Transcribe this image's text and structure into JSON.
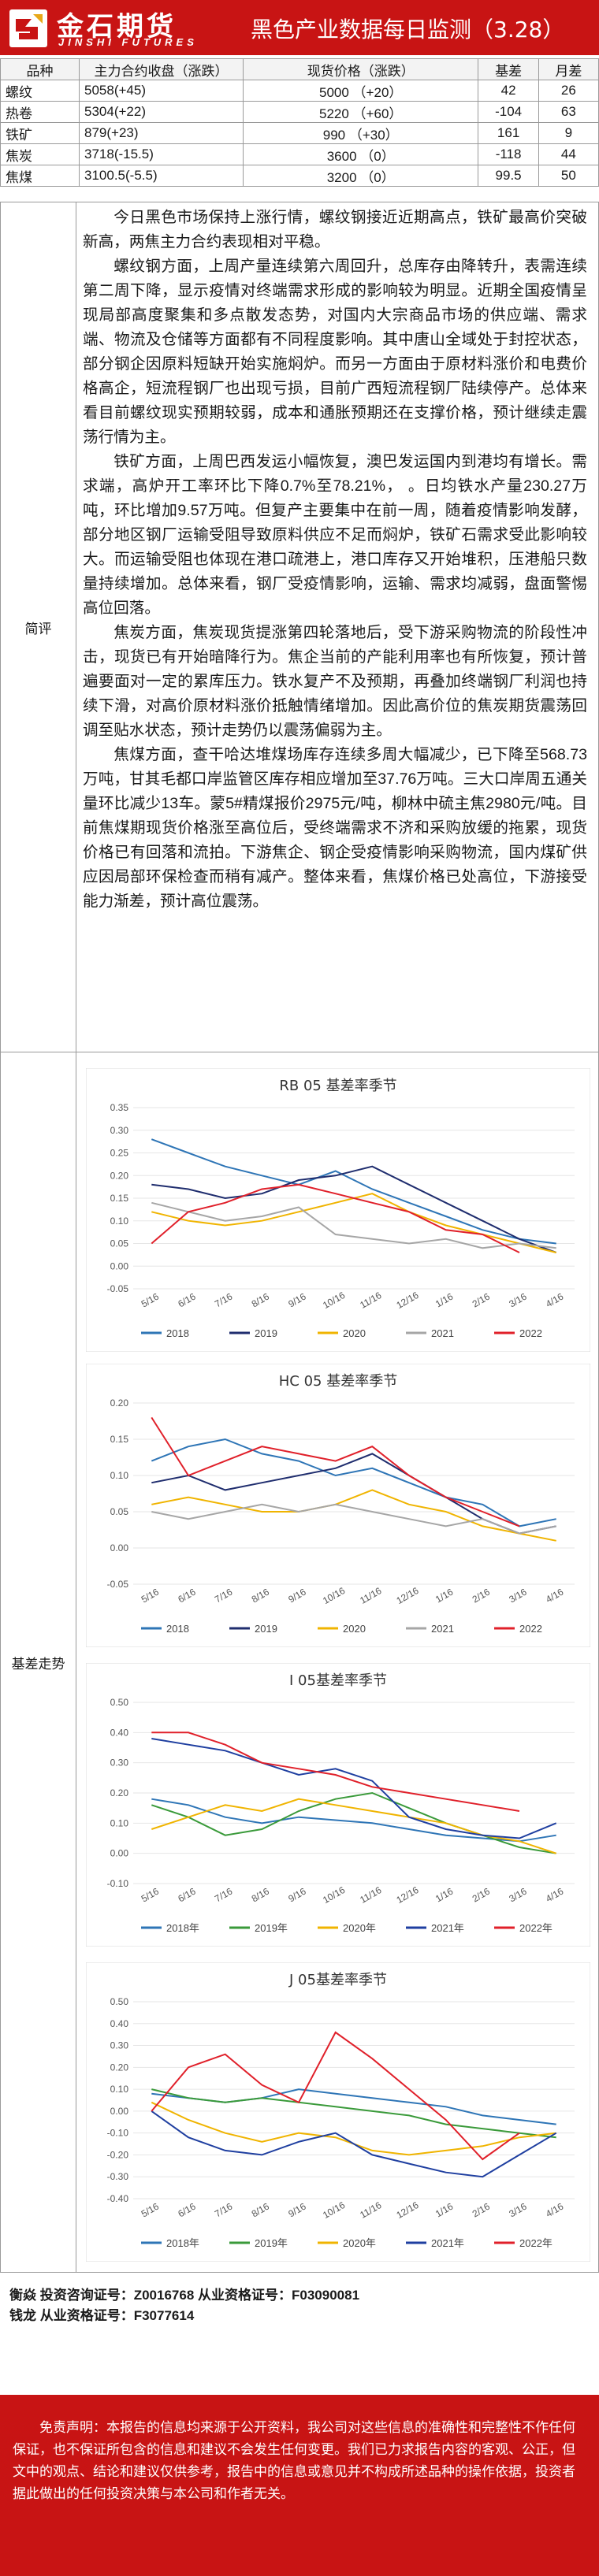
{
  "header": {
    "logo_cn": "金石期货",
    "logo_en": "JINSHI FUTURES",
    "title": "黑色产业数据每日监测（3.28）"
  },
  "table": {
    "headers": [
      "品种",
      "主力合约收盘（涨跌）",
      "现货价格（涨跌）",
      "基差",
      "月差"
    ],
    "rows": [
      [
        "螺纹",
        "5058(+45)",
        "5000 （+20）",
        "42",
        "26"
      ],
      [
        "热卷",
        "5304(+22)",
        "5220 （+60）",
        "-104",
        "63"
      ],
      [
        "铁矿",
        "879(+23)",
        "990 （+30）",
        "161",
        "9"
      ],
      [
        "焦炭",
        "3718(-15.5)",
        "3600 （0）",
        "-118",
        "44"
      ],
      [
        "焦煤",
        "3100.5(-5.5)",
        "3200 （0）",
        "99.5",
        "50"
      ]
    ]
  },
  "brief": {
    "label": "简评",
    "paragraphs": [
      "今日黑色市场保持上涨行情，螺纹钢接近近期高点，铁矿最高价突破新高，两焦主力合约表现相对平稳。",
      "螺纹钢方面，上周产量连续第六周回升，总库存由降转升，表需连续第二周下降，显示疫情对终端需求形成的影响较为明显。近期全国疫情呈现局部高度聚集和多点散发态势，对国内大宗商品市场的供应端、需求端、物流及仓储等方面都有不同程度影响。其中唐山全域处于封控状态，部分钢企因原料短缺开始实施焖炉。而另一方面由于原材料涨价和电费价格高企，短流程钢厂也出现亏损，目前广西短流程钢厂陆续停产。总体来看目前螺纹现实预期较弱，成本和通胀预期还在支撑价格，预计继续走震荡行情为主。",
      "铁矿方面，上周巴西发运小幅恢复，澳巴发运国内到港均有增长。需求端，高炉开工率环比下降0.7%至78.21%， 。日均铁水产量230.27万吨，环比增加9.57万吨。但复产主要集中在前一周，随着疫情影响发酵，部分地区钢厂运输受阻导致原料供应不足而焖炉，铁矿石需求受此影响较大。而运输受阻也体现在港口疏港上，港口库存又开始堆积，压港船只数量持续增加。总体来看，钢厂受疫情影响，运输、需求均减弱，盘面警惕高位回落。",
      "焦炭方面，焦炭现货提涨第四轮落地后，受下游采购物流的阶段性冲击，现货已有开始暗降行为。焦企当前的产能利用率也有所恢复，预计普遍要面对一定的累库压力。铁水复产不及预期，再叠加终端钢厂利润也持续下滑，对高价原材料涨价抵触情绪增加。因此高价位的焦炭期货震荡回调至贴水状态，预计走势仍以震荡偏弱为主。",
      "焦煤方面，查干哈达堆煤场库存连续多周大幅减少，已下降至568.73万吨，甘其毛都口岸监管区库存相应增加至37.76万吨。三大口岸周五通关量环比减少13车。蒙5#精煤报价2975元/吨，柳林中硫主焦2980元/吨。目前焦煤期现货价格涨至高位后，受终端需求不济和采购放缓的拖累，现货价格已有回落和流拍。下游焦企、钢企受疫情影响采购物流，国内煤矿供应因局部环保检查而稍有减产。整体来看，焦煤价格已处高位，下游接受能力渐差，预计高位震荡。"
    ]
  },
  "charts_label": "基差走势",
  "chart_data": [
    {
      "type": "line",
      "title": "RB 05 基差率季节",
      "categories": [
        "5/16",
        "6/16",
        "7/16",
        "8/16",
        "9/16",
        "10/16",
        "11/16",
        "12/16",
        "1/16",
        "2/16",
        "3/16",
        "4/16"
      ],
      "ylim": [
        -0.05,
        0.35
      ],
      "yticks": [
        "0.35",
        "0.30",
        "0.25",
        "0.20",
        "0.15",
        "0.10",
        "0.05",
        "0.00",
        "-0.05"
      ],
      "series": [
        {
          "name": "2018",
          "color": "#2e75b6",
          "values": [
            0.28,
            0.25,
            0.22,
            0.2,
            0.18,
            0.21,
            0.17,
            0.14,
            0.11,
            0.08,
            0.06,
            0.05
          ]
        },
        {
          "name": "2019",
          "color": "#1f2d6e",
          "values": [
            0.18,
            0.17,
            0.15,
            0.16,
            0.19,
            0.2,
            0.22,
            0.18,
            0.14,
            0.1,
            0.06,
            0.03
          ]
        },
        {
          "name": "2020",
          "color": "#f0b400",
          "values": [
            0.12,
            0.1,
            0.09,
            0.1,
            0.12,
            0.14,
            0.16,
            0.12,
            0.09,
            0.07,
            0.05,
            0.03
          ]
        },
        {
          "name": "2021",
          "color": "#a6a6a6",
          "values": [
            0.14,
            0.12,
            0.1,
            0.11,
            0.13,
            0.07,
            0.06,
            0.05,
            0.06,
            0.04,
            0.05,
            0.04
          ]
        },
        {
          "name": "2022",
          "color": "#e0202a",
          "values": [
            0.05,
            0.12,
            0.14,
            0.17,
            0.18,
            0.16,
            0.14,
            0.12,
            0.08,
            0.07,
            0.03,
            null
          ]
        }
      ]
    },
    {
      "type": "line",
      "title": "HC 05 基差率季节",
      "categories": [
        "5/16",
        "6/16",
        "7/16",
        "8/16",
        "9/16",
        "10/16",
        "11/16",
        "12/16",
        "1/16",
        "2/16",
        "3/16",
        "4/16"
      ],
      "ylim": [
        -0.05,
        0.2
      ],
      "yticks": [
        "0.20",
        "0.15",
        "0.10",
        "0.05",
        "0.00",
        "-0.05"
      ],
      "series": [
        {
          "name": "2018",
          "color": "#2e75b6",
          "values": [
            0.12,
            0.14,
            0.15,
            0.13,
            0.12,
            0.1,
            0.11,
            0.09,
            0.07,
            0.06,
            0.03,
            0.04
          ]
        },
        {
          "name": "2019",
          "color": "#1f2d6e",
          "values": [
            0.09,
            0.1,
            0.08,
            0.09,
            0.1,
            0.11,
            0.13,
            0.1,
            0.07,
            0.04,
            0.02,
            0.03
          ]
        },
        {
          "name": "2020",
          "color": "#f0b400",
          "values": [
            0.06,
            0.07,
            0.06,
            0.05,
            0.05,
            0.06,
            0.08,
            0.06,
            0.05,
            0.03,
            0.02,
            0.01
          ]
        },
        {
          "name": "2021",
          "color": "#a6a6a6",
          "values": [
            0.05,
            0.04,
            0.05,
            0.06,
            0.05,
            0.06,
            0.05,
            0.04,
            0.03,
            0.04,
            0.02,
            0.03
          ]
        },
        {
          "name": "2022",
          "color": "#e0202a",
          "values": [
            0.18,
            0.1,
            0.12,
            0.14,
            0.13,
            0.12,
            0.14,
            0.1,
            0.07,
            0.05,
            0.03,
            null
          ]
        }
      ]
    },
    {
      "type": "line",
      "title": "I 05基差率季节",
      "categories": [
        "5/16",
        "6/16",
        "7/16",
        "8/16",
        "9/16",
        "10/16",
        "11/16",
        "12/16",
        "1/16",
        "2/16",
        "3/16",
        "4/16"
      ],
      "ylim": [
        -0.1,
        0.5
      ],
      "yticks": [
        "0.50",
        "0.40",
        "0.30",
        "0.20",
        "0.10",
        "0.00",
        "-0.10"
      ],
      "series": [
        {
          "name": "2018年",
          "color": "#2e75b6",
          "values": [
            0.18,
            0.16,
            0.12,
            0.1,
            0.12,
            0.11,
            0.1,
            0.08,
            0.06,
            0.05,
            0.04,
            0.06
          ]
        },
        {
          "name": "2019年",
          "color": "#3a9a3a",
          "values": [
            0.16,
            0.12,
            0.06,
            0.08,
            0.14,
            0.18,
            0.2,
            0.15,
            0.1,
            0.06,
            0.02,
            0.0
          ]
        },
        {
          "name": "2020年",
          "color": "#f0b400",
          "values": [
            0.08,
            0.12,
            0.16,
            0.14,
            0.18,
            0.16,
            0.14,
            0.12,
            0.1,
            0.06,
            0.04,
            0.0
          ]
        },
        {
          "name": "2021年",
          "color": "#1f3fa0",
          "values": [
            0.38,
            0.36,
            0.34,
            0.3,
            0.26,
            0.28,
            0.24,
            0.12,
            0.08,
            0.06,
            0.05,
            0.1
          ]
        },
        {
          "name": "2022年",
          "color": "#e0202a",
          "values": [
            0.4,
            0.4,
            0.36,
            0.3,
            0.28,
            0.26,
            0.22,
            0.2,
            0.18,
            0.16,
            0.14,
            null
          ]
        }
      ]
    },
    {
      "type": "line",
      "title": "J 05基差率季节",
      "categories": [
        "5/16",
        "6/16",
        "7/16",
        "8/16",
        "9/16",
        "10/16",
        "11/16",
        "12/16",
        "1/16",
        "2/16",
        "3/16",
        "4/16"
      ],
      "ylim": [
        -0.4,
        0.5
      ],
      "yticks": [
        "0.50",
        "0.40",
        "0.30",
        "0.20",
        "0.10",
        "0.00",
        "-0.10",
        "-0.20",
        "-0.30",
        "-0.40"
      ],
      "series": [
        {
          "name": "2018年",
          "color": "#2e75b6",
          "values": [
            0.08,
            0.06,
            0.04,
            0.06,
            0.1,
            0.08,
            0.06,
            0.04,
            0.02,
            -0.02,
            -0.04,
            -0.06
          ]
        },
        {
          "name": "2019年",
          "color": "#3a9a3a",
          "values": [
            0.1,
            0.06,
            0.04,
            0.06,
            0.04,
            0.02,
            0.0,
            -0.02,
            -0.06,
            -0.08,
            -0.1,
            -0.12
          ]
        },
        {
          "name": "2020年",
          "color": "#f0b400",
          "values": [
            0.04,
            -0.04,
            -0.1,
            -0.14,
            -0.1,
            -0.12,
            -0.18,
            -0.2,
            -0.18,
            -0.16,
            -0.12,
            -0.1
          ]
        },
        {
          "name": "2021年",
          "color": "#1f3fa0",
          "values": [
            0.0,
            -0.12,
            -0.18,
            -0.2,
            -0.14,
            -0.1,
            -0.2,
            -0.24,
            -0.28,
            -0.3,
            -0.2,
            -0.1
          ]
        },
        {
          "name": "2022年",
          "color": "#e0202a",
          "values": [
            0.0,
            0.2,
            0.26,
            0.12,
            0.04,
            0.36,
            0.24,
            0.1,
            -0.04,
            -0.22,
            -0.1,
            null
          ]
        }
      ]
    }
  ],
  "analysts": [
    "衡焱 投资咨询证号：Z0016768 从业资格证号：F03090081",
    "钱龙 从业资格证号：F3077614"
  ],
  "disclaimer": "免责声明：本报告的信息均来源于公开资料，我公司对这些信息的准确性和完整性不作任何保证，也不保证所包含的信息和建议不会发生任何变更。我们已力求报告内容的客观、公正，但文中的观点、结论和建议仅供参考，报告中的信息或意见并不构成所述品种的操作依据，投资者据此做出的任何投资决策与本公司和作者无关。"
}
